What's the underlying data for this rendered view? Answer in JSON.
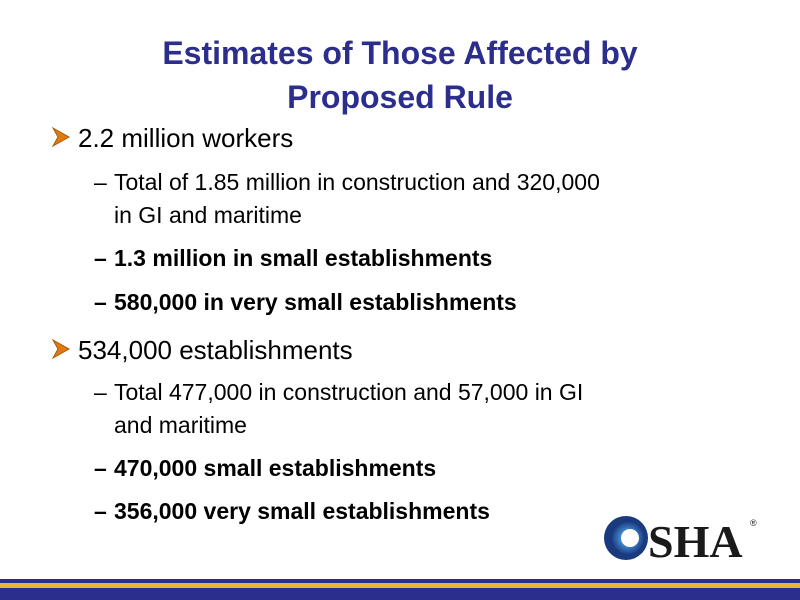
{
  "slide": {
    "title_line1": "Estimates of Those Affected by",
    "title_line2": "Proposed Rule",
    "bullets": [
      {
        "text": "2.2 million workers",
        "subs": [
          {
            "line1": "Total of 1.85 million in construction and  320,000",
            "line2": "in GI and maritime"
          },
          {
            "text": "1.3 million in small establishments"
          },
          {
            "text": "580,000 in very small establishments"
          }
        ]
      },
      {
        "text": "534,000 establishments",
        "subs": [
          {
            "line1": "Total 477,000 in construction and 57,000 in GI",
            "line2": "and maritime"
          },
          {
            "text": "470,000 small establishments"
          },
          {
            "text": "356,000 very small establishments"
          }
        ]
      }
    ],
    "dash": "–"
  },
  "logo": {
    "text": "SHA",
    "registered": "®",
    "icon": "osha-logo-icon"
  },
  "colors": {
    "title": "#2b2e8c",
    "bullet_arrow": "#e07a10",
    "bar_blue": "#2b2e8c",
    "bar_gold": "#e8b830"
  }
}
